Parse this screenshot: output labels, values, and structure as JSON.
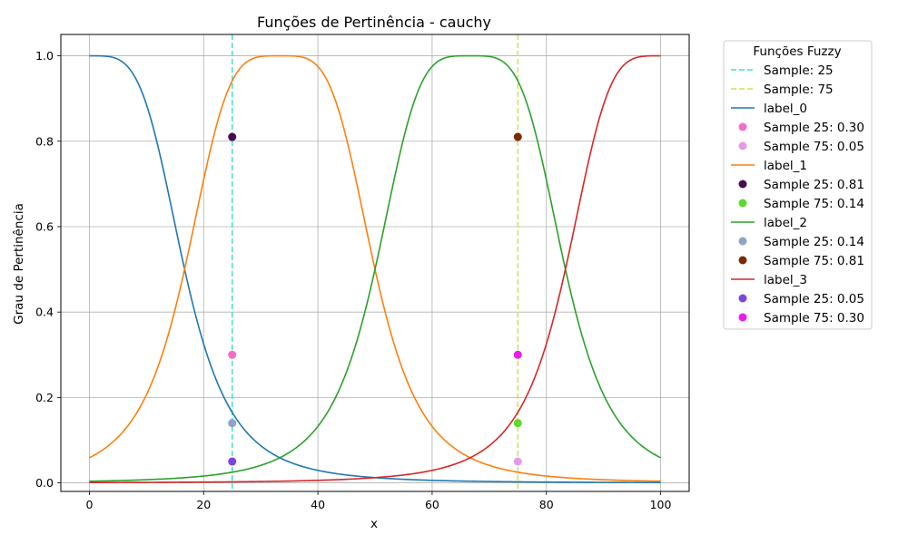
{
  "chart_data": {
    "type": "line",
    "title": "Funções de Pertinência - cauchy",
    "xlabel": "x",
    "ylabel": "Grau de Pertinência",
    "xlim": [
      -5,
      105
    ],
    "ylim": [
      -0.02,
      1.05
    ],
    "xticks": [
      0,
      20,
      40,
      60,
      80,
      100
    ],
    "yticks": [
      0.0,
      0.2,
      0.4,
      0.6,
      0.8,
      1.0
    ],
    "xtick_labels": [
      "0",
      "20",
      "40",
      "60",
      "80",
      "100"
    ],
    "ytick_labels": [
      "0.0",
      "0.2",
      "0.4",
      "0.6",
      "0.8",
      "1.0"
    ],
    "grid": true,
    "legend_title": "Funções Fuzzy",
    "legend_position": "outside-right",
    "function": "cauchy",
    "vlines": [
      {
        "name": "Sample: 25",
        "x": 25,
        "color": "#40e0d0"
      },
      {
        "name": "Sample: 75",
        "x": 75,
        "color": "#d4e157"
      }
    ],
    "series": [
      {
        "name": "label_0",
        "color": "#1f77b4",
        "center": 0,
        "width": 16.67,
        "slope": 2,
        "samples": [
          {
            "name": "Sample 25: 0.30",
            "x": 25,
            "y": 0.3,
            "color": "#f06ec8"
          },
          {
            "name": "Sample 75: 0.05",
            "x": 75,
            "y": 0.05,
            "color": "#e49ae6"
          }
        ]
      },
      {
        "name": "label_1",
        "color": "#ff7f0e",
        "center": 33.33,
        "width": 16.67,
        "slope": 2,
        "samples": [
          {
            "name": "Sample 25: 0.81",
            "x": 25,
            "y": 0.81,
            "color": "#4b0a4f"
          },
          {
            "name": "Sample 75: 0.14",
            "x": 75,
            "y": 0.14,
            "color": "#5fd92a"
          }
        ]
      },
      {
        "name": "label_2",
        "color": "#2ca02c",
        "center": 66.67,
        "width": 16.67,
        "slope": 2,
        "samples": [
          {
            "name": "Sample 25: 0.14",
            "x": 25,
            "y": 0.14,
            "color": "#8ea3c8"
          },
          {
            "name": "Sample 75: 0.81",
            "x": 75,
            "y": 0.81,
            "color": "#7a2a05"
          }
        ]
      },
      {
        "name": "label_3",
        "color": "#d62728",
        "center": 100,
        "width": 16.67,
        "slope": 2,
        "samples": [
          {
            "name": "Sample 25: 0.05",
            "x": 25,
            "y": 0.05,
            "color": "#7b45e0"
          },
          {
            "name": "Sample 75: 0.30",
            "x": 75,
            "y": 0.3,
            "color": "#e81ee8"
          }
        ]
      }
    ],
    "legend_order": [
      "Sample: 25",
      "Sample: 75",
      "label_0",
      "Sample 25: 0.30",
      "Sample 75: 0.05",
      "label_1",
      "Sample 25: 0.81",
      "Sample 75: 0.14",
      "label_2",
      "Sample 25: 0.14",
      "Sample 75: 0.81",
      "label_3",
      "Sample 25: 0.05",
      "Sample 75: 0.30"
    ]
  }
}
